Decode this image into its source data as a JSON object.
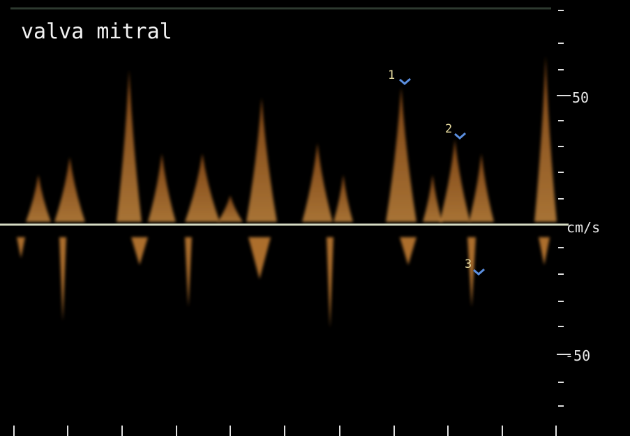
{
  "title": "valva mitral",
  "scale": {
    "upper": 50,
    "unit": "cm/s",
    "lower": -50
  },
  "markers": [
    "1",
    "2",
    "3"
  ]
}
